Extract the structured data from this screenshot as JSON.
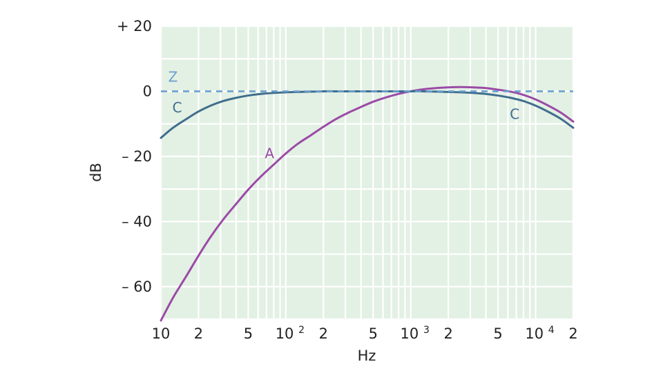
{
  "chart_data": {
    "type": "line",
    "title": "",
    "xlabel": "Hz",
    "ylabel": "dB",
    "xscale": "log",
    "xlim": [
      10,
      20000
    ],
    "ylim": [
      -70,
      20
    ],
    "grid": true,
    "background_color": "#e3f0e4",
    "x_ticks": [
      {
        "value": 10,
        "label": "10"
      },
      {
        "value": 20,
        "label": "2"
      },
      {
        "value": 50,
        "label": "5"
      },
      {
        "value": 100,
        "label": "10",
        "exp": "2"
      },
      {
        "value": 200,
        "label": "2"
      },
      {
        "value": 500,
        "label": "5"
      },
      {
        "value": 1000,
        "label": "10",
        "exp": "3"
      },
      {
        "value": 2000,
        "label": "2"
      },
      {
        "value": 5000,
        "label": "5"
      },
      {
        "value": 10000,
        "label": "10",
        "exp": "4"
      },
      {
        "value": 20000,
        "label": "2"
      }
    ],
    "y_ticks": [
      {
        "value": 20,
        "label": "+ 20"
      },
      {
        "value": 0,
        "label": "0"
      },
      {
        "value": -20,
        "label": "– 20"
      },
      {
        "value": -40,
        "label": "– 40"
      },
      {
        "value": -60,
        "label": "– 60"
      }
    ],
    "series": [
      {
        "name": "A",
        "color": "#9b4aa6",
        "dashed": false,
        "x": [
          10,
          12.5,
          16,
          20,
          25,
          31.5,
          40,
          50,
          63,
          80,
          100,
          125,
          160,
          200,
          250,
          315,
          400,
          500,
          630,
          800,
          1000,
          1250,
          1600,
          2000,
          2500,
          3150,
          4000,
          5000,
          6300,
          8000,
          10000,
          12500,
          16000,
          20000
        ],
        "y": [
          -70.4,
          -63.4,
          -56.7,
          -50.5,
          -44.7,
          -39.4,
          -34.6,
          -30.2,
          -26.2,
          -22.5,
          -19.1,
          -16.1,
          -13.4,
          -10.9,
          -8.6,
          -6.6,
          -4.8,
          -3.2,
          -1.9,
          -0.8,
          0.0,
          0.6,
          1.0,
          1.2,
          1.3,
          1.2,
          1.0,
          0.5,
          -0.1,
          -1.1,
          -2.5,
          -4.3,
          -6.6,
          -9.3
        ]
      },
      {
        "name": "C",
        "color": "#3f6e8c",
        "dashed": false,
        "x": [
          10,
          12.5,
          16,
          20,
          25,
          31.5,
          40,
          50,
          63,
          80,
          100,
          125,
          160,
          200,
          250,
          315,
          400,
          500,
          630,
          800,
          1000,
          1250,
          1600,
          2000,
          2500,
          3150,
          4000,
          5000,
          6300,
          8000,
          10000,
          12500,
          16000,
          20000
        ],
        "y": [
          -14.3,
          -11.2,
          -8.5,
          -6.2,
          -4.4,
          -3.0,
          -2.0,
          -1.3,
          -0.8,
          -0.5,
          -0.3,
          -0.2,
          -0.1,
          0.0,
          0.0,
          0.0,
          0.0,
          0.0,
          0.0,
          0.0,
          0.0,
          0.0,
          -0.1,
          -0.2,
          -0.3,
          -0.5,
          -0.8,
          -1.3,
          -2.0,
          -3.0,
          -4.4,
          -6.2,
          -8.5,
          -11.2
        ]
      },
      {
        "name": "Z",
        "color": "#6a9fd0",
        "dashed": true,
        "x": [
          10,
          20000
        ],
        "y": [
          0,
          0
        ]
      }
    ],
    "labels": [
      {
        "text": "Z",
        "color": "#6a9fd0",
        "x": 12.5,
        "y": 3
      },
      {
        "text": "C",
        "color": "#3f6e8c",
        "x": 13.5,
        "y": -6.5
      },
      {
        "text": "C",
        "color": "#3f6e8c",
        "x": 6800,
        "y": -8.5
      },
      {
        "text": "A",
        "color": "#9b4aa6",
        "x": 74,
        "y": -20.5
      }
    ]
  }
}
